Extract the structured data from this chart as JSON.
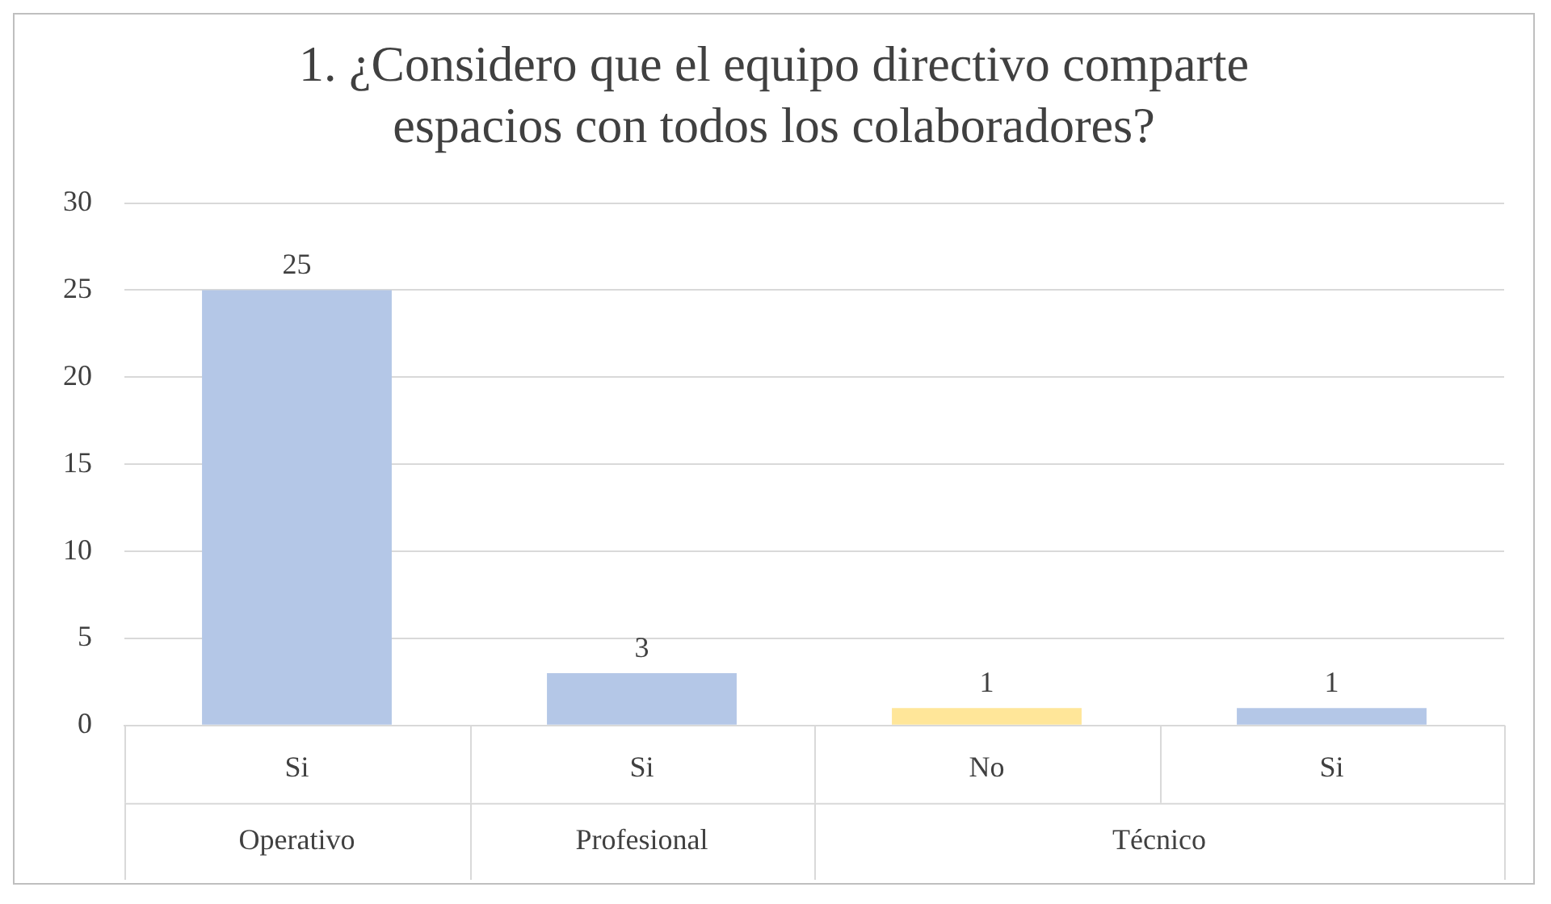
{
  "chart_data": {
    "type": "bar",
    "title": "1. ¿Considero que el equipo directivo comparte espacios con todos los colaboradores?",
    "categories": [
      "Si",
      "Si",
      "No",
      "Si"
    ],
    "values": [
      25,
      3,
      1,
      1
    ],
    "colors": [
      "#b4c7e7",
      "#b4c7e7",
      "#ffe699",
      "#b4c7e7"
    ],
    "ylim": [
      0,
      30
    ],
    "yticks": [
      0,
      5,
      10,
      15,
      20,
      25,
      30
    ],
    "grid": true,
    "data_labels": true,
    "legend": false,
    "annotations": [
      "Operativo",
      "Profesional",
      "Técnico"
    ]
  }
}
